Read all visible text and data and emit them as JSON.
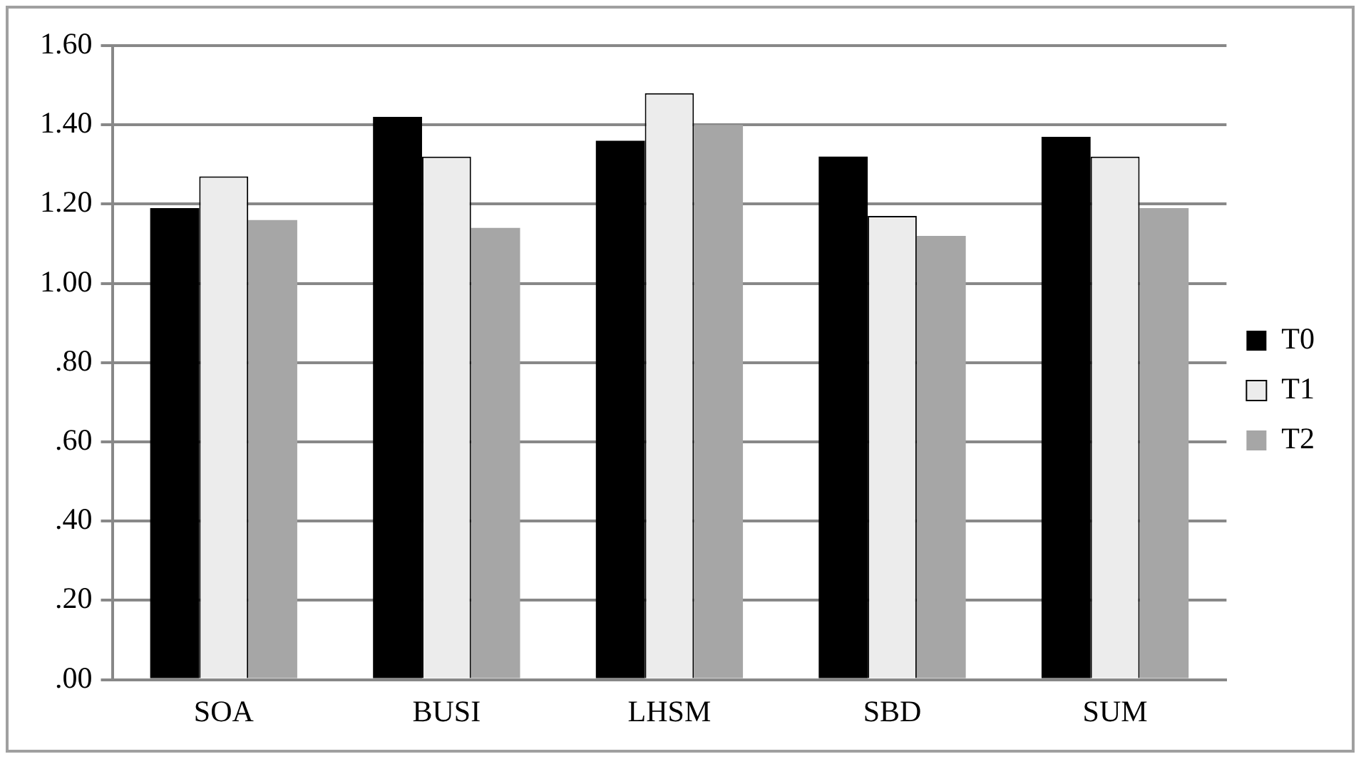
{
  "chart_data": {
    "type": "bar",
    "categories": [
      "SOA",
      "BUSI",
      "LHSM",
      "SBD",
      "SUM"
    ],
    "series": [
      {
        "name": "T0",
        "color": "#000000",
        "values": [
          1.19,
          1.42,
          1.36,
          1.32,
          1.37
        ]
      },
      {
        "name": "T1",
        "color": "#ececec",
        "values": [
          1.27,
          1.32,
          1.48,
          1.17,
          1.32
        ]
      },
      {
        "name": "T2",
        "color": "#a6a6a6",
        "values": [
          1.16,
          1.14,
          1.4,
          1.12,
          1.19
        ]
      }
    ],
    "ylim": [
      0,
      1.6
    ],
    "yticks": [
      {
        "value": 0,
        "label": ".00"
      },
      {
        "value": 0.2,
        "label": ".20"
      },
      {
        "value": 0.4,
        "label": ".40"
      },
      {
        "value": 0.6,
        "label": ".60"
      },
      {
        "value": 0.8,
        "label": ".80"
      },
      {
        "value": 1.0,
        "label": "1.00"
      },
      {
        "value": 1.2,
        "label": "1.20"
      },
      {
        "value": 1.4,
        "label": "1.40"
      },
      {
        "value": 1.6,
        "label": "1.60"
      }
    ],
    "grid": "y",
    "legend": "right"
  }
}
